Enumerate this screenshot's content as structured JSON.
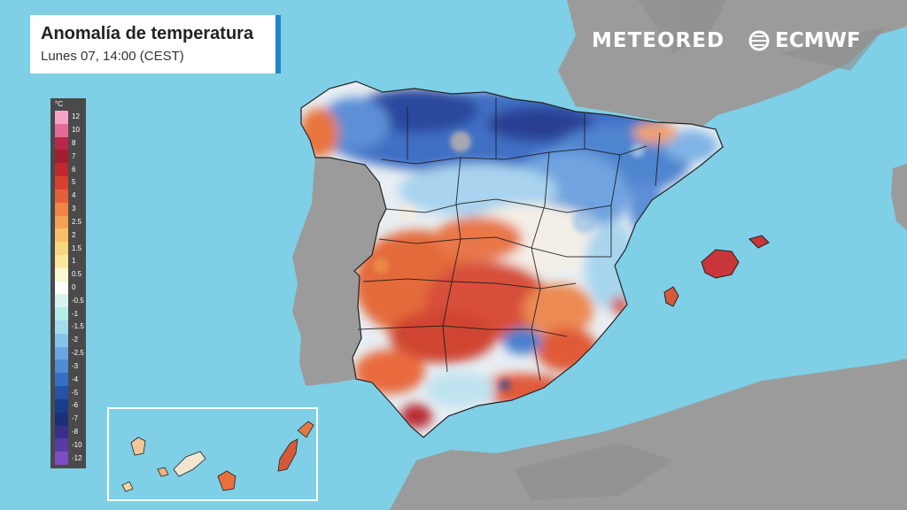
{
  "title": "Anomalía de temperatura",
  "subtitle": "Lunes 07, 14:00 (CEST)",
  "brands": {
    "meteored": "METEORED",
    "ecmwf": "ECMWF"
  },
  "legend": {
    "unit": "°C",
    "labels": [
      "12",
      "10",
      "8",
      "7",
      "6",
      "5",
      "4",
      "3",
      "2.5",
      "2",
      "1.5",
      "1",
      "0.5",
      "0",
      "-0.5",
      "-1",
      "-1.5",
      "-2",
      "-2.5",
      "-3",
      "-4",
      "-5",
      "-6",
      "-7",
      "-8",
      "-10",
      "-12"
    ],
    "colors": [
      "#f7a3c8",
      "#e46a97",
      "#b8274a",
      "#a31d2c",
      "#c0282e",
      "#d8402f",
      "#e4603a",
      "#ef8445",
      "#f3a253",
      "#f7bf67",
      "#f9d57f",
      "#fbe79c",
      "#fdf6d0",
      "#ffffff",
      "#d9f3f2",
      "#b5ece8",
      "#a4dcee",
      "#86c4ea",
      "#6aa7e0",
      "#4f8dd6",
      "#356fc3",
      "#2352a8",
      "#183d8d",
      "#1c2f78",
      "#3a2f8c",
      "#5a3aa6",
      "#7d4cc4"
    ]
  },
  "colors": {
    "sea": "#7fcfe6",
    "land": "#9a9a9a",
    "hot": "#d64a2e",
    "warm": "#ef8a4f",
    "cool": "#4f86d0",
    "cold": "#2c4fa6",
    "brand_bar": "#1f86c9"
  }
}
